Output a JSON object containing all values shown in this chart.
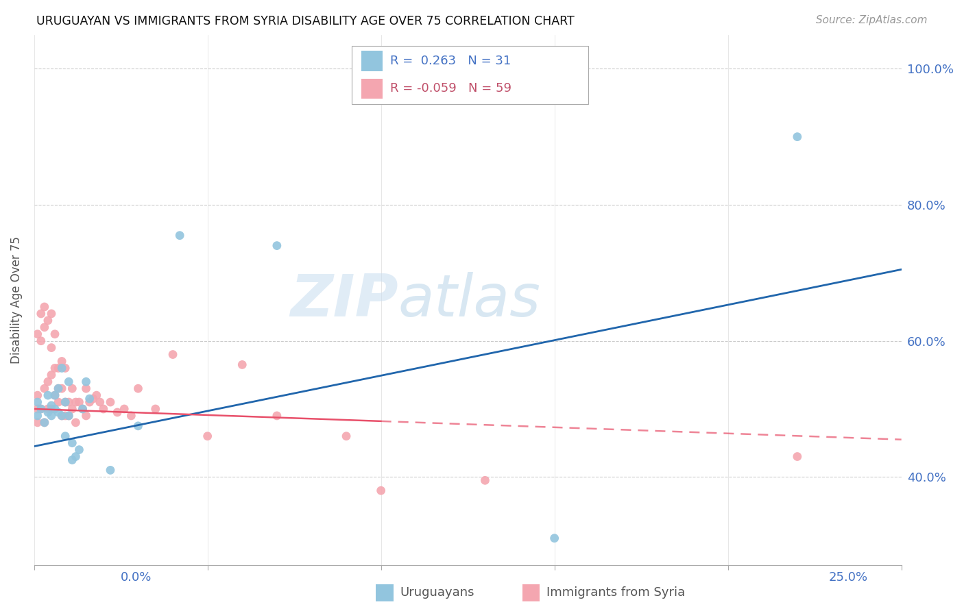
{
  "title": "URUGUAYAN VS IMMIGRANTS FROM SYRIA DISABILITY AGE OVER 75 CORRELATION CHART",
  "source_text": "Source: ZipAtlas.com",
  "ylabel": "Disability Age Over 75",
  "xlim": [
    0.0,
    0.25
  ],
  "ylim": [
    0.27,
    1.05
  ],
  "ytick_vals": [
    0.4,
    0.6,
    0.8,
    1.0
  ],
  "ytick_labels": [
    "40.0%",
    "60.0%",
    "80.0%",
    "100.0%"
  ],
  "uruguayans_R": 0.263,
  "uruguayans_N": 31,
  "syria_R": -0.059,
  "syria_N": 59,
  "uruguayan_color": "#92c5de",
  "syria_color": "#f4a6b0",
  "trend_blue_color": "#2166ac",
  "trend_pink_color": "#e8506a",
  "watermark_zip": "ZIP",
  "watermark_atlas": "atlas",
  "background_color": "#ffffff",
  "grid_color": "#cccccc",
  "uruguayan_x": [
    0.001,
    0.001,
    0.002,
    0.003,
    0.004,
    0.004,
    0.005,
    0.005,
    0.006,
    0.006,
    0.007,
    0.007,
    0.008,
    0.008,
    0.009,
    0.009,
    0.01,
    0.01,
    0.011,
    0.011,
    0.012,
    0.013,
    0.014,
    0.015,
    0.016,
    0.022,
    0.03,
    0.042,
    0.07,
    0.15,
    0.22
  ],
  "uruguayan_y": [
    0.51,
    0.49,
    0.5,
    0.48,
    0.52,
    0.495,
    0.49,
    0.505,
    0.5,
    0.52,
    0.53,
    0.495,
    0.56,
    0.49,
    0.46,
    0.51,
    0.49,
    0.54,
    0.425,
    0.45,
    0.43,
    0.44,
    0.5,
    0.54,
    0.515,
    0.41,
    0.475,
    0.755,
    0.74,
    0.31,
    0.9
  ],
  "syria_x": [
    0.001,
    0.001,
    0.001,
    0.001,
    0.002,
    0.002,
    0.002,
    0.003,
    0.003,
    0.003,
    0.003,
    0.004,
    0.004,
    0.004,
    0.005,
    0.005,
    0.005,
    0.005,
    0.006,
    0.006,
    0.006,
    0.007,
    0.007,
    0.007,
    0.008,
    0.008,
    0.008,
    0.009,
    0.009,
    0.009,
    0.01,
    0.01,
    0.011,
    0.011,
    0.012,
    0.012,
    0.013,
    0.014,
    0.015,
    0.015,
    0.016,
    0.017,
    0.018,
    0.019,
    0.02,
    0.022,
    0.024,
    0.026,
    0.028,
    0.03,
    0.035,
    0.04,
    0.05,
    0.06,
    0.07,
    0.09,
    0.1,
    0.13,
    0.22
  ],
  "syria_y": [
    0.5,
    0.52,
    0.48,
    0.61,
    0.64,
    0.6,
    0.5,
    0.65,
    0.62,
    0.48,
    0.53,
    0.63,
    0.54,
    0.5,
    0.64,
    0.59,
    0.55,
    0.5,
    0.61,
    0.56,
    0.52,
    0.56,
    0.53,
    0.51,
    0.57,
    0.53,
    0.49,
    0.56,
    0.51,
    0.49,
    0.51,
    0.49,
    0.53,
    0.5,
    0.51,
    0.48,
    0.51,
    0.5,
    0.53,
    0.49,
    0.51,
    0.515,
    0.52,
    0.51,
    0.5,
    0.51,
    0.495,
    0.5,
    0.49,
    0.53,
    0.5,
    0.58,
    0.46,
    0.565,
    0.49,
    0.46,
    0.38,
    0.395,
    0.43
  ],
  "trend_blue_y0": 0.445,
  "trend_blue_y1": 0.705,
  "trend_pink_y0": 0.5,
  "trend_pink_y1": 0.455,
  "trend_pink_solid_end": 0.1,
  "legend_R_blue": "R =  0.263",
  "legend_N_blue": "N = 31",
  "legend_R_pink": "R = -0.059",
  "legend_N_pink": "N = 59"
}
